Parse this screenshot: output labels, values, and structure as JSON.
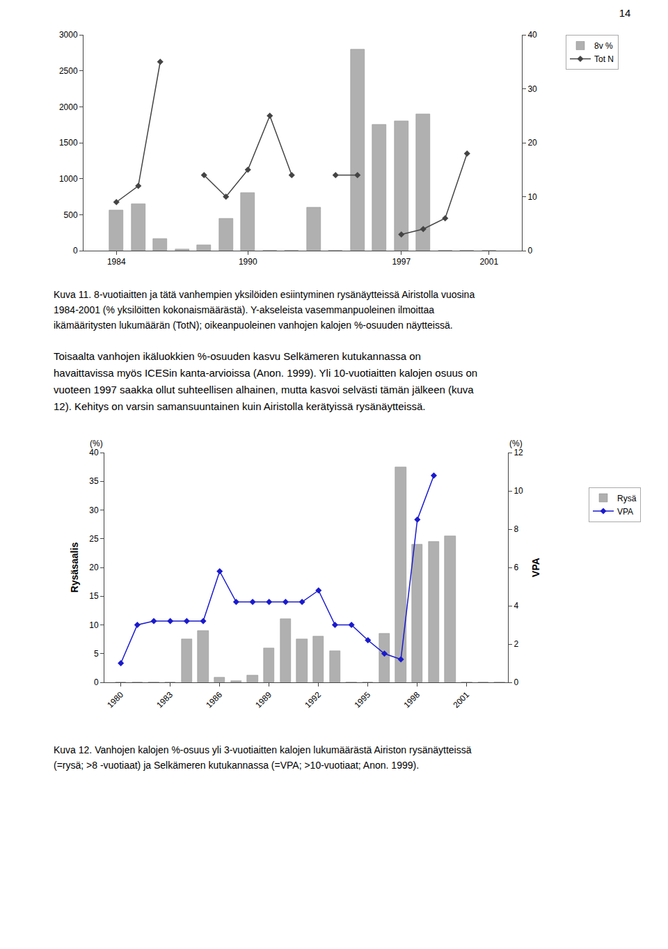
{
  "page_number": "14",
  "body_text": [
    "Toisaalta vanhojen ikäluokkien %-osuuden kasvu Selkämeren kutukannassa on",
    "havaittavissa myös ICESin kanta-arvioissa (Anon. 1999). Yli 10-vuotiaitten kalojen osuus on",
    "vuoteen 1997 saakka ollut suhteellisen alhainen, mutta kasvoi selvästi tämän jälkeen (kuva",
    "12). Kehitys on varsin samansuuntainen kuin Airistolla kerätyissä rysänäytteissä."
  ],
  "chart_data": [
    {
      "type": "bar",
      "caption": [
        "Kuva 11. 8-vuotiaitten ja tätä vanhempien yksilöiden esiintyminen rysänäytteissä Airistolla vuosina",
        "1984-2001 (% yksilöitten kokonaismäärästä). Y-akseleista vasemmanpuoleinen ilmoittaa",
        "ikämääritysten lukumäärän (TotN); oikeanpuoleinen vanhojen kalojen %-osuuden näytteissä."
      ],
      "x": [
        1984,
        1985,
        1986,
        1987,
        1988,
        1989,
        1990,
        1991,
        1992,
        1993,
        1994,
        1995,
        1996,
        1997,
        1998,
        1999,
        2000,
        2001
      ],
      "series": [
        {
          "name": "8v %",
          "type": "bar",
          "color": "#b0b0b0",
          "values": [
            560,
            650,
            160,
            20,
            80,
            450,
            800,
            0,
            0,
            600,
            0,
            2800,
            1750,
            1800,
            1900,
            0,
            0,
            0
          ]
        },
        {
          "name": "Tot N",
          "type": "line",
          "axis": "y2",
          "color": "#444444",
          "marker": "diamond",
          "values": [
            9,
            12,
            35,
            null,
            14,
            10,
            15,
            25,
            14,
            null,
            14,
            14,
            null,
            3,
            4,
            6,
            18,
            null
          ]
        }
      ],
      "xlim": [
        1982.5,
        2002.5
      ],
      "xticks": [
        1984,
        1990,
        1997,
        2001
      ],
      "ylim": [
        0,
        3000
      ],
      "yticks": [
        0,
        500,
        1000,
        1500,
        2000,
        2500,
        3000
      ],
      "y2lim": [
        0,
        40
      ],
      "y2ticks": [
        0,
        10,
        20,
        30,
        40
      ],
      "grid": false,
      "legend": "right"
    },
    {
      "type": "bar",
      "caption": [
        "Kuva 12. Vanhojen kalojen  %-osuus yli 3-vuotiaitten kalojen lukumäärästä Airiston rysänäytteissä",
        "(=rysä; >8 -vuotiaat) ja Selkämeren kutukannassa (=VPA; >10-vuotiaat; Anon. 1999)."
      ],
      "ylabel": "Rysäsaalis",
      "y2label": "VPA",
      "annotations": [
        {
          "text": "(%)",
          "axis": "y"
        },
        {
          "text": "(%)",
          "axis": "y2"
        }
      ],
      "x": [
        1980,
        1981,
        1982,
        1983,
        1984,
        1985,
        1986,
        1987,
        1988,
        1989,
        1990,
        1991,
        1992,
        1993,
        1994,
        1995,
        1996,
        1997,
        1998,
        1999,
        2000,
        2001,
        2002,
        2003
      ],
      "series": [
        {
          "name": "Rysä",
          "type": "bar",
          "color": "#b0b0b0",
          "values": [
            0,
            0,
            0,
            0,
            7.5,
            9.0,
            0.8,
            0.2,
            1.2,
            6.0,
            11.0,
            7.5,
            8.0,
            5.5,
            0,
            0,
            8.5,
            37.5,
            24.0,
            24.5,
            25.5,
            0,
            0,
            0
          ]
        },
        {
          "name": "VPA",
          "type": "line",
          "axis": "y2",
          "color": "#1a1acd",
          "marker": "diamond",
          "values": [
            1.0,
            3.0,
            3.2,
            3.2,
            3.2,
            3.2,
            5.8,
            4.2,
            4.2,
            4.2,
            4.2,
            4.2,
            4.8,
            3.0,
            3.0,
            2.2,
            1.5,
            1.2,
            8.5,
            10.8,
            null,
            null,
            null,
            null
          ]
        }
      ],
      "xlim": [
        1979,
        2003.5
      ],
      "xticks": [
        1980,
        1983,
        1986,
        1989,
        1992,
        1995,
        1998,
        2001
      ],
      "ylim": [
        0,
        40
      ],
      "yticks": [
        0,
        5,
        10,
        15,
        20,
        25,
        30,
        35,
        40
      ],
      "y2lim": [
        0,
        12
      ],
      "y2ticks": [
        0,
        2,
        4,
        6,
        8,
        10,
        12
      ],
      "grid": false,
      "legend": "right"
    }
  ]
}
